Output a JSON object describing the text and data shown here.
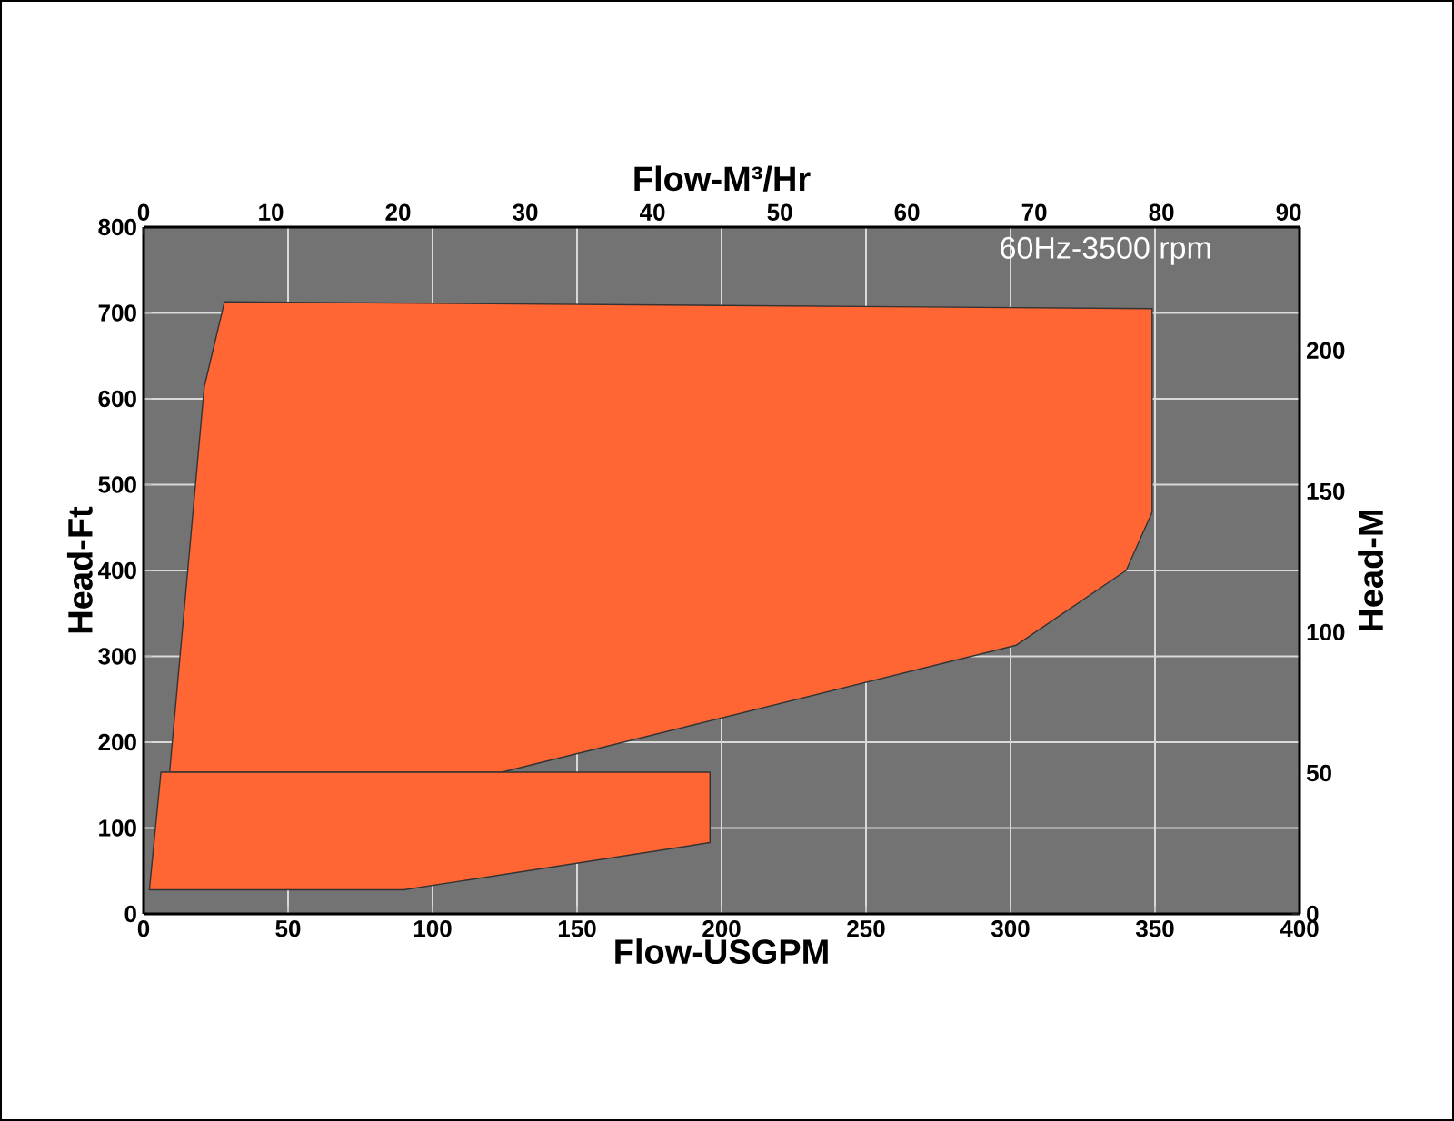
{
  "chart_data": {
    "type": "area",
    "xlabel": "Flow-USGPM",
    "ylabel": "Head-Ft",
    "x2label": "Flow-M³/Hr",
    "y2label": "Head-M",
    "xlim": [
      0,
      400
    ],
    "xticks": [
      0,
      50,
      100,
      150,
      200,
      250,
      300,
      350,
      400
    ],
    "ylim": [
      0,
      800
    ],
    "yticks": [
      0,
      100,
      200,
      300,
      400,
      500,
      600,
      700,
      800
    ],
    "x2lim": [
      0,
      90.85
    ],
    "x2ticks": [
      0,
      10,
      20,
      30,
      40,
      50,
      60,
      70,
      80,
      90
    ],
    "y2lim": [
      0,
      243.8
    ],
    "y2ticks": [
      0,
      50,
      100,
      150,
      200
    ],
    "grid": true,
    "annotations": [
      "60Hz-3500 rpm"
    ],
    "series": [
      {
        "color": "#ff6633",
        "x": [
          28,
          349,
          349,
          340,
          302,
          124,
          9,
          21
        ],
        "values": [
          713,
          705,
          468,
          400,
          313,
          165,
          165,
          614
        ]
      },
      {
        "color": "#ff6633",
        "x": [
          6,
          196,
          196,
          90,
          2
        ],
        "values": [
          165,
          165,
          83,
          28,
          28
        ]
      }
    ]
  }
}
